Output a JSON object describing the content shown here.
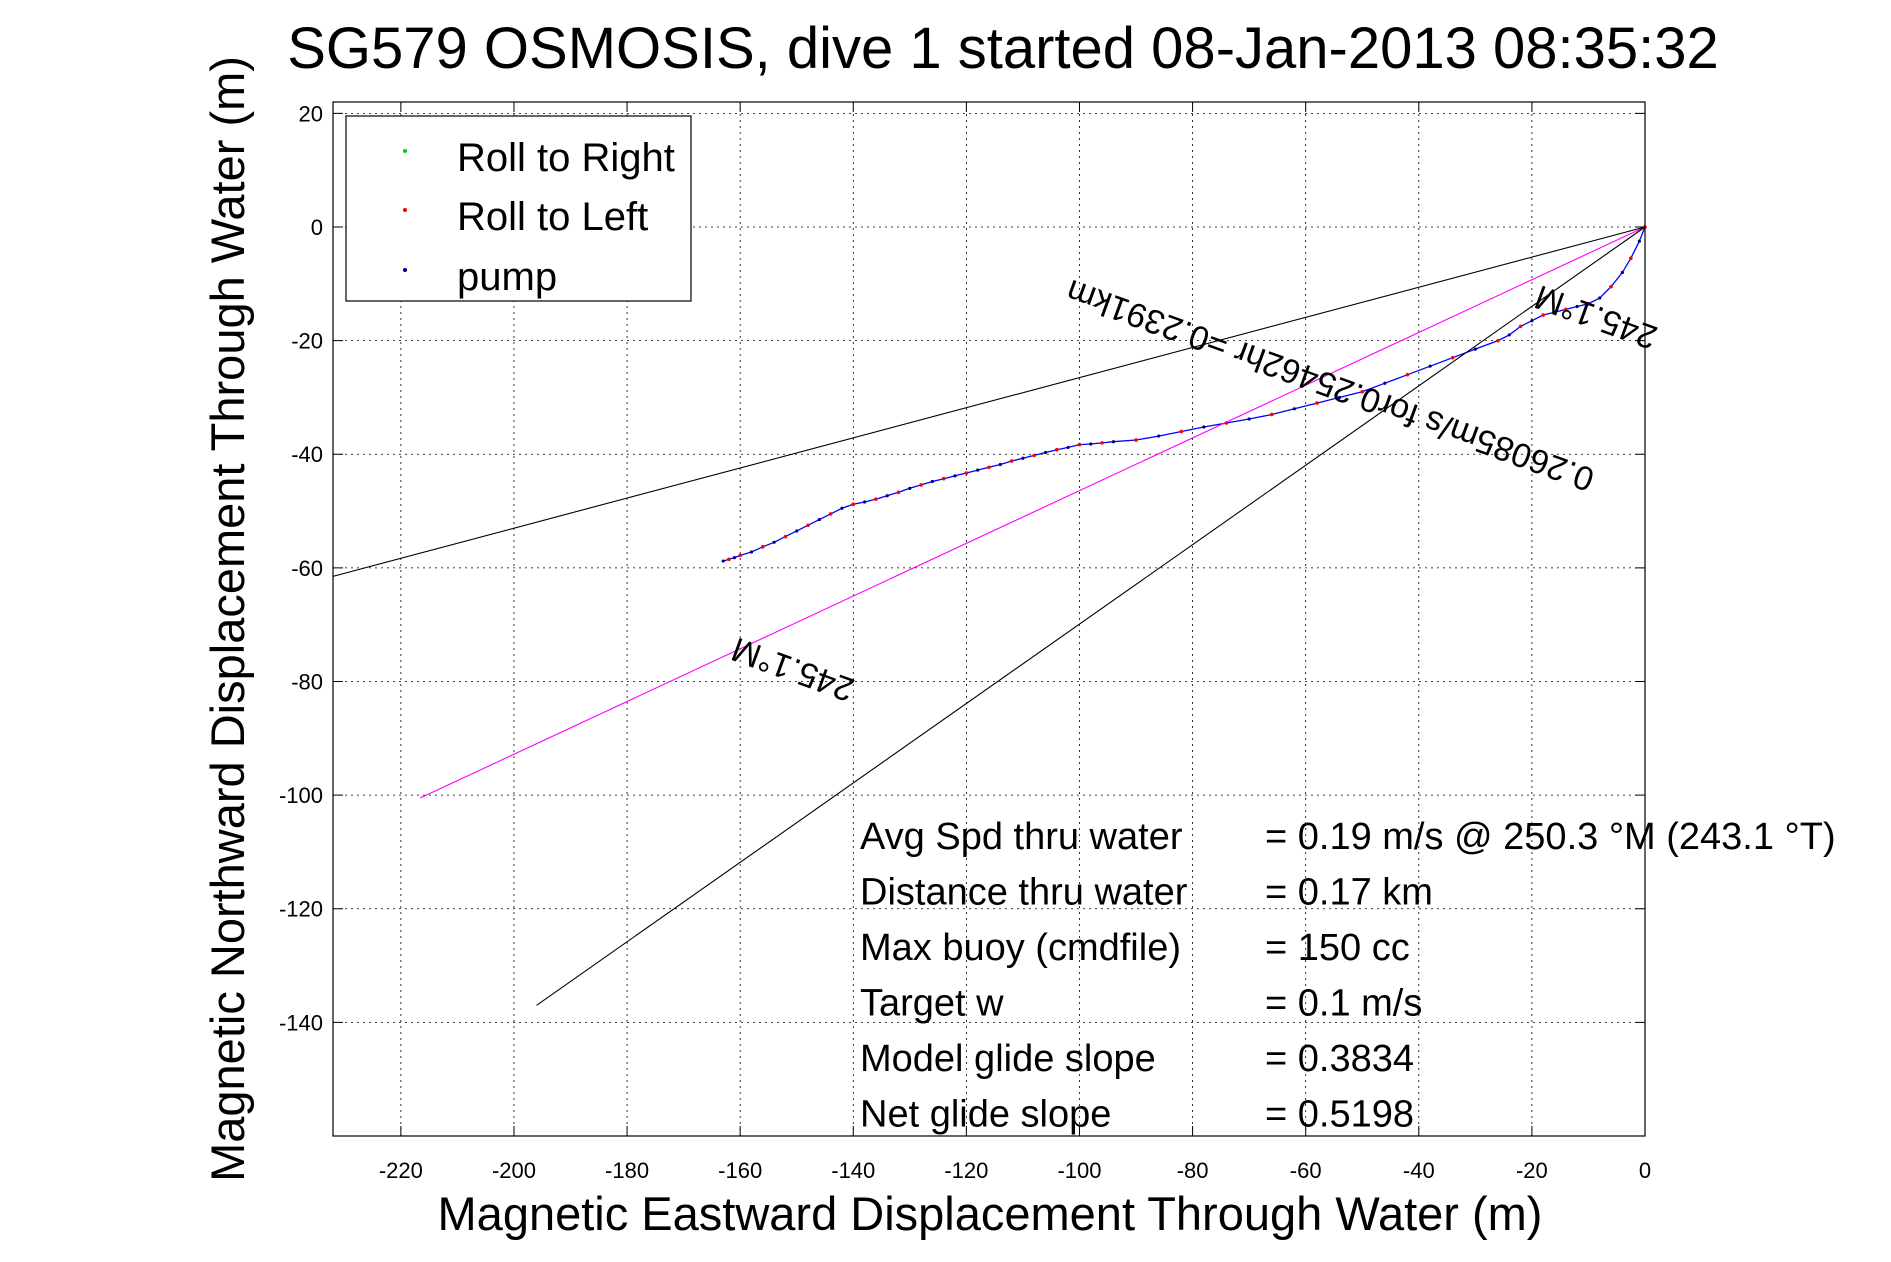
{
  "chart_data": {
    "type": "line",
    "title": "SG579 OSMOSIS, dive 1 started 08-Jan-2013 08:35:32",
    "xlabel": "Magnetic Eastward Displacement Through Water (m)",
    "ylabel": "Magnetic Northward Displacement Through Water (m)",
    "xlim": [
      -232,
      0
    ],
    "ylim": [
      -160,
      22
    ],
    "xticks": [
      -220,
      -200,
      -180,
      -160,
      -140,
      -120,
      -100,
      -80,
      -60,
      -40,
      -20,
      0
    ],
    "yticks": [
      20,
      0,
      -20,
      -40,
      -60,
      -80,
      -100,
      -120,
      -140
    ],
    "grid": true,
    "legend_position": "top-left",
    "legend": [
      {
        "label": "Roll to Right",
        "color": "#00cc00",
        "marker": "dot"
      },
      {
        "label": "Roll to Left",
        "color": "#ff0000",
        "marker": "dot"
      },
      {
        "label": "pump",
        "color": "#000080",
        "marker": "dot"
      }
    ],
    "series": [
      {
        "color": "#0000ff",
        "style": "line",
        "x": [
          0,
          -1,
          -2.5,
          -4,
          -6,
          -8,
          -10,
          -12,
          -14,
          -16,
          -18,
          -20,
          -22,
          -24,
          -26,
          -30,
          -34,
          -38,
          -42,
          -46,
          -50,
          -54,
          -58,
          -62,
          -66,
          -70,
          -74,
          -78,
          -82,
          -86,
          -90,
          -94,
          -96,
          -98,
          -100,
          -102,
          -104,
          -106,
          -108,
          -110,
          -112,
          -114,
          -116,
          -118,
          -120,
          -122,
          -124,
          -126,
          -128,
          -130,
          -132,
          -134,
          -136,
          -138,
          -140,
          -142,
          -144,
          -146,
          -148,
          -150,
          -152,
          -154,
          -156,
          -158,
          -160,
          -161,
          -162,
          -163
        ],
        "y": [
          0,
          -2.5,
          -5.5,
          -8,
          -10.5,
          -12.5,
          -13.5,
          -14,
          -14.5,
          -15,
          -15.5,
          -16.5,
          -17.5,
          -19,
          -20,
          -21.5,
          -23,
          -24.5,
          -26,
          -27.5,
          -29,
          -30,
          -31,
          -32,
          -33,
          -33.8,
          -34.5,
          -35.2,
          -36,
          -36.8,
          -37.5,
          -37.8,
          -38,
          -38.2,
          -38.3,
          -38.8,
          -39.2,
          -39.7,
          -40.2,
          -40.7,
          -41.2,
          -41.8,
          -42.3,
          -42.8,
          -43.3,
          -43.8,
          -44.3,
          -44.8,
          -45.4,
          -46,
          -46.7,
          -47.3,
          -47.9,
          -48.4,
          -48.8,
          -49.5,
          -50.5,
          -51.5,
          -52.5,
          -53.5,
          -54.5,
          -55.5,
          -56.3,
          -57.2,
          -57.8,
          -58.2,
          -58.5,
          -58.8
        ]
      },
      {
        "color": "#ff00ff",
        "style": "line",
        "x": [
          0,
          -216.6
        ],
        "y": [
          0,
          -100.5
        ]
      },
      {
        "color": "#000000",
        "style": "line",
        "x": [
          0,
          -232
        ],
        "y": [
          0,
          -61.5
        ]
      },
      {
        "color": "#000000",
        "style": "line",
        "x": [
          0,
          -196
        ],
        "y": [
          0,
          -137
        ]
      }
    ],
    "annotations": [
      {
        "text": "245.1°M",
        "x": -8,
        "y": -14,
        "rotation": 200
      },
      {
        "text": "0.26085m/s for0.25462hr =0.2391km",
        "x": -55,
        "y": -26,
        "rotation": 200
      },
      {
        "text": "245.1°M",
        "x": -150,
        "y": -76,
        "rotation": 200
      }
    ],
    "stats": [
      {
        "label": "Avg Spd thru water",
        "value": "=  0.19 m/s @ 250.3 °M (243.1 °T)"
      },
      {
        "label": "Distance thru water",
        "value": "=  0.17 km"
      },
      {
        "label": "Max buoy (cmdfile)",
        "value": "= 150 cc"
      },
      {
        "label": "Target w",
        "value": "= 0.1 m/s"
      },
      {
        "label": "Model glide slope",
        "value": "= 0.3834"
      },
      {
        "label": "Net glide slope",
        "value": "= 0.5198"
      }
    ]
  }
}
